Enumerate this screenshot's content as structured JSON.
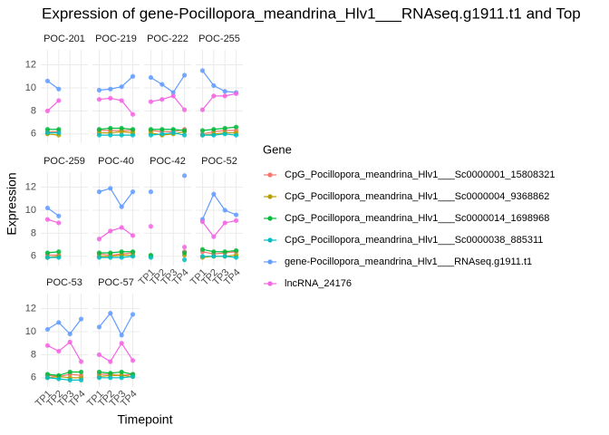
{
  "chart_data": {
    "type": "line",
    "title": "Expression of gene-Pocillopora_meandrina_Hlv1___RNAseq.g1911.t1 and Top",
    "x_label": "Timepoint",
    "y_label": "Expression",
    "legend_title": "Gene",
    "categories": [
      "TP1",
      "TP2",
      "TP3",
      "TP4"
    ],
    "ylim": [
      5.2,
      13.3
    ],
    "yticks": [
      6,
      8,
      10,
      12
    ],
    "grid": true,
    "series": [
      {
        "name": "CpG_Pocillopora_meandrina_Hlv1___Sc0000001_15808321",
        "color": "#F8766D"
      },
      {
        "name": "CpG_Pocillopora_meandrina_Hlv1___Sc0000004_9368862",
        "color": "#B79F00"
      },
      {
        "name": "CpG_Pocillopora_meandrina_Hlv1___Sc0000014_1698968",
        "color": "#00BA38"
      },
      {
        "name": "CpG_Pocillopora_meandrina_Hlv1___Sc0000038_885311",
        "color": "#00BFC4"
      },
      {
        "name": "gene-Pocillopora_meandrina_Hlv1___RNAseq.g1911.t1",
        "color": "#619CFF"
      },
      {
        "name": "lncRNA_24176",
        "color": "#F564E3"
      }
    ],
    "panels": [
      {
        "name": "POC-201",
        "values": [
          [
            6.2,
            6.2,
            null,
            null
          ],
          [
            6.0,
            5.9,
            null,
            null
          ],
          [
            6.4,
            6.4,
            null,
            null
          ],
          [
            6.1,
            6.1,
            null,
            null
          ],
          [
            10.6,
            9.9,
            null,
            null
          ],
          [
            8.0,
            8.9,
            null,
            null
          ]
        ]
      },
      {
        "name": "POC-219",
        "values": [
          [
            6.3,
            6.3,
            6.3,
            6.3
          ],
          [
            6.1,
            6.1,
            6.2,
            6.1
          ],
          [
            6.4,
            6.5,
            6.5,
            6.4
          ],
          [
            5.9,
            5.9,
            5.9,
            5.9
          ],
          [
            9.8,
            9.9,
            10.1,
            11.0
          ],
          [
            9.0,
            9.1,
            8.9,
            7.7
          ]
        ]
      },
      {
        "name": "POC-222",
        "values": [
          [
            6.3,
            6.2,
            6.2,
            6.4
          ],
          [
            6.1,
            5.9,
            6.0,
            6.2
          ],
          [
            6.4,
            6.4,
            6.4,
            6.3
          ],
          [
            5.9,
            6.0,
            6.1,
            5.9
          ],
          [
            10.9,
            10.3,
            9.6,
            11.1
          ],
          [
            8.8,
            9.0,
            9.3,
            8.1
          ]
        ]
      },
      {
        "name": "POC-255",
        "values": [
          [
            6.0,
            6.2,
            6.3,
            6.3
          ],
          [
            5.9,
            6.0,
            6.1,
            6.1
          ],
          [
            6.3,
            6.4,
            6.5,
            6.6
          ],
          [
            5.9,
            5.9,
            6.0,
            5.9
          ],
          [
            11.5,
            10.2,
            9.7,
            9.6
          ],
          [
            8.1,
            9.3,
            9.3,
            9.5
          ]
        ]
      },
      {
        "name": "POC-259",
        "values": [
          [
            6.1,
            6.1,
            null,
            null
          ],
          [
            5.9,
            6.0,
            null,
            null
          ],
          [
            6.3,
            6.4,
            null,
            null
          ],
          [
            5.9,
            5.9,
            null,
            null
          ],
          [
            10.2,
            9.5,
            null,
            null
          ],
          [
            9.2,
            8.9,
            null,
            null
          ]
        ]
      },
      {
        "name": "POC-40",
        "values": [
          [
            6.2,
            6.1,
            6.2,
            6.3
          ],
          [
            6.0,
            6.0,
            6.1,
            6.1
          ],
          [
            6.3,
            6.3,
            6.4,
            6.4
          ],
          [
            5.9,
            5.9,
            5.9,
            6.0
          ],
          [
            11.6,
            11.9,
            10.3,
            11.6
          ],
          [
            7.5,
            8.2,
            8.5,
            7.8
          ]
        ]
      },
      {
        "name": "POC-42",
        "values": [
          [
            6.0,
            null,
            null,
            6.4
          ],
          [
            6.0,
            null,
            null,
            6.1
          ],
          [
            6.1,
            null,
            null,
            6.3
          ],
          [
            5.9,
            null,
            null,
            5.7
          ],
          [
            11.6,
            null,
            null,
            13.0
          ],
          [
            8.6,
            null,
            null,
            6.8
          ]
        ]
      },
      {
        "name": "POC-52",
        "values": [
          [
            6.4,
            6.2,
            6.3,
            6.4
          ],
          [
            5.9,
            6.0,
            6.0,
            6.1
          ],
          [
            6.6,
            6.4,
            6.4,
            6.5
          ],
          [
            6.0,
            6.0,
            6.0,
            5.9
          ],
          [
            9.2,
            11.4,
            10.0,
            9.6
          ],
          [
            9.0,
            7.7,
            8.9,
            9.1
          ]
        ]
      },
      {
        "name": "POC-53",
        "values": [
          [
            6.2,
            6.1,
            6.3,
            6.2
          ],
          [
            6.0,
            6.1,
            6.0,
            6.0
          ],
          [
            6.3,
            6.2,
            6.5,
            6.5
          ],
          [
            6.0,
            5.9,
            5.8,
            5.8
          ],
          [
            10.2,
            10.8,
            9.8,
            11.1
          ],
          [
            8.8,
            8.3,
            9.1,
            7.4
          ]
        ]
      },
      {
        "name": "POC-57",
        "values": [
          [
            6.3,
            6.3,
            6.2,
            6.3
          ],
          [
            6.1,
            6.2,
            6.2,
            6.1
          ],
          [
            6.5,
            6.4,
            6.5,
            6.3
          ],
          [
            6.0,
            6.0,
            6.0,
            6.1
          ],
          [
            10.4,
            11.6,
            9.7,
            11.5
          ],
          [
            8.0,
            7.4,
            9.0,
            7.5
          ]
        ]
      }
    ]
  }
}
